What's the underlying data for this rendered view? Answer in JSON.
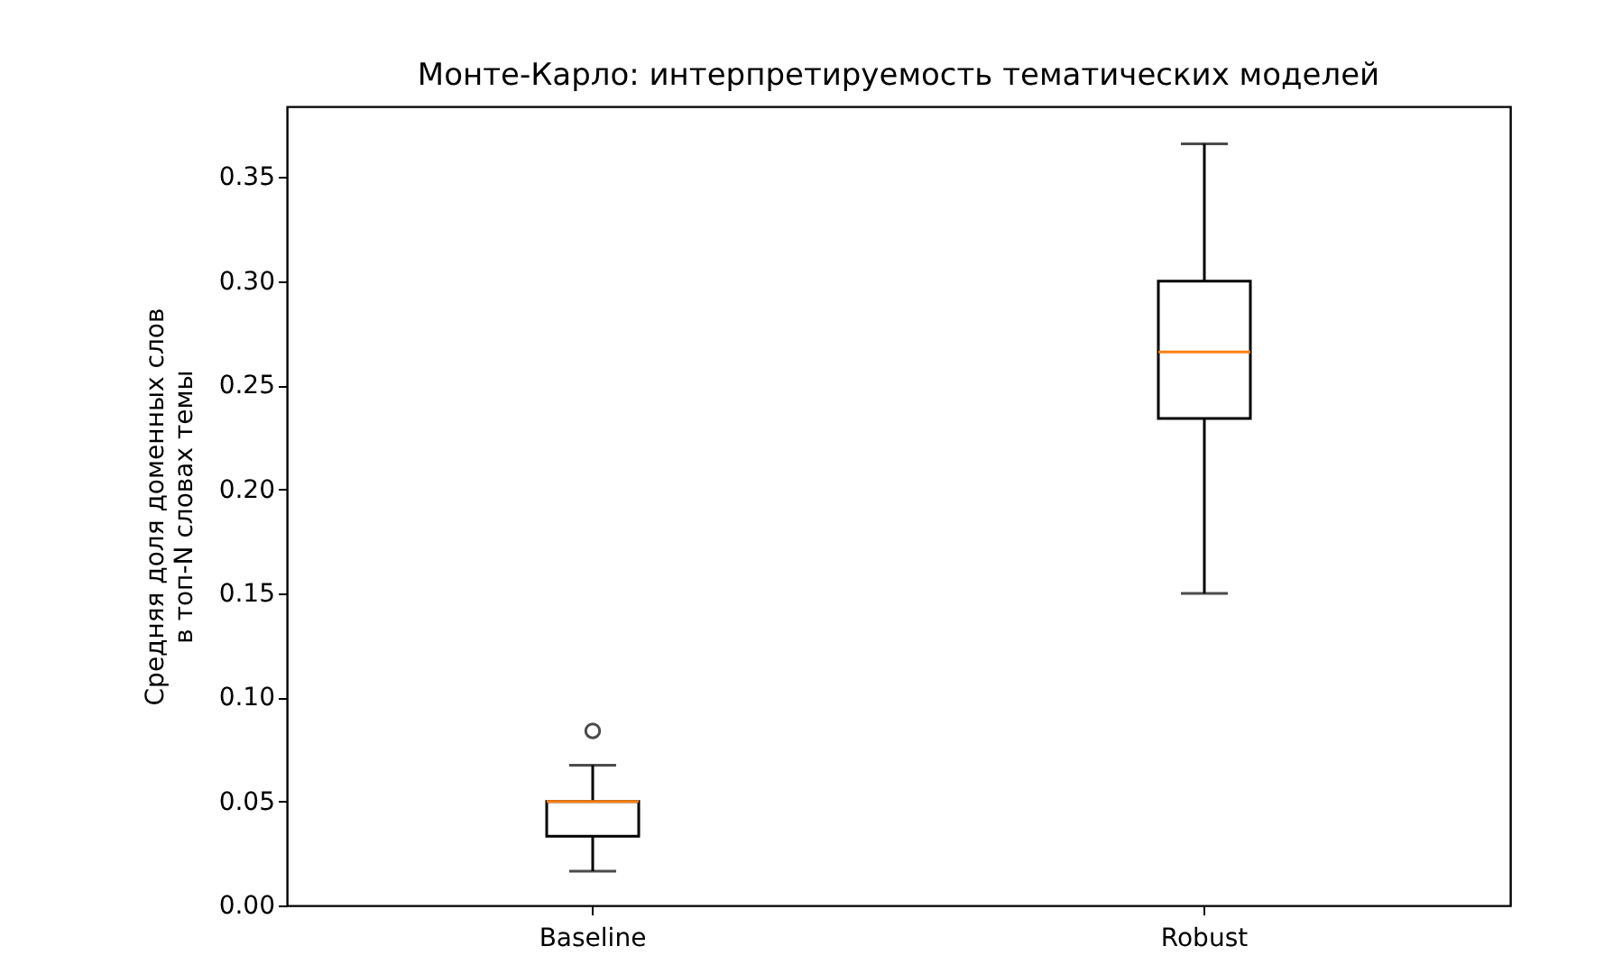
{
  "chart_data": {
    "type": "box",
    "title": "Монте-Карло: интерпретируемость тематических моделей",
    "ylabel": "Средняя доля доменных слов\nв топ-N словах темы",
    "categories": [
      "Baseline",
      "Robust"
    ],
    "boxes": [
      {
        "low": 0.0165,
        "q1": 0.0333,
        "median": 0.05,
        "q3": 0.05,
        "high": 0.0674,
        "outliers": [
          0.0839
        ]
      },
      {
        "low": 0.15,
        "q1": 0.234,
        "median": 0.266,
        "q3": 0.3,
        "high": 0.366
      }
    ],
    "ylim": [
      0,
      0.384
    ],
    "yticks": [
      {
        "value": 0,
        "label": "0.00"
      },
      {
        "value": 0.05,
        "label": "0.05"
      },
      {
        "value": 0.1,
        "label": "0.10"
      },
      {
        "value": 0.15,
        "label": "0.15"
      },
      {
        "value": 0.2,
        "label": "0.20"
      },
      {
        "value": 0.25,
        "label": "0.25"
      },
      {
        "value": 0.3,
        "label": "0.30"
      },
      {
        "value": 0.35,
        "label": "0.35"
      }
    ],
    "grid": false
  }
}
